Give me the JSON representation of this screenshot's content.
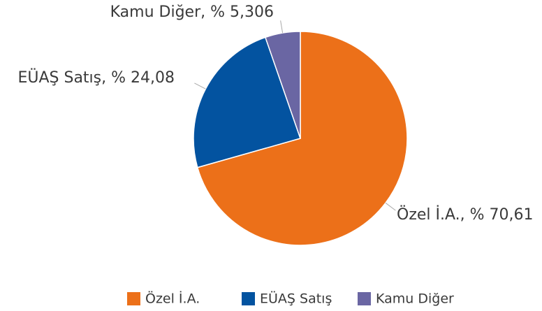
{
  "chart_data": {
    "type": "pie",
    "categories": [
      "Özel İ.A.",
      "EÜAŞ Satış",
      "Kamu Diğer"
    ],
    "values": [
      70.61,
      24.08,
      5.306
    ],
    "value_labels": [
      "Özel İ.A., % 70,61",
      "EÜAŞ Satış, % 24,08",
      "Kamu Diğer, % 5,306"
    ],
    "colors": [
      "#ec7019",
      "#0353a0",
      "#6a66a3"
    ],
    "legend": "bottom"
  }
}
